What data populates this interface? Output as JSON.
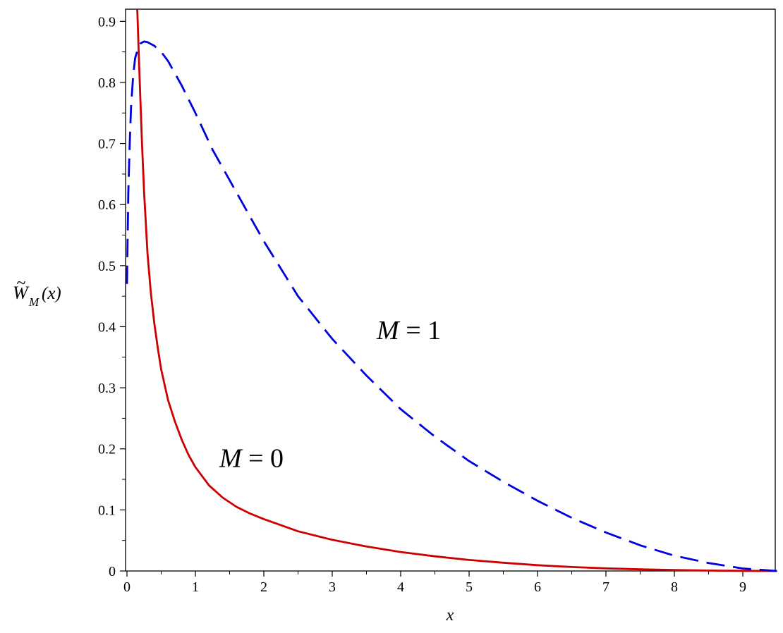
{
  "chart_data": {
    "type": "line",
    "title": "",
    "xlabel": "x",
    "ylabel": {
      "symbol": "W",
      "accent": "~",
      "subscript": "M",
      "argument": "(x)"
    },
    "xlim": [
      0,
      9.5
    ],
    "ylim": [
      0,
      0.92
    ],
    "xticks": [
      0,
      1,
      2,
      3,
      4,
      5,
      6,
      7,
      8,
      9
    ],
    "yticks": [
      0,
      0.1,
      0.2,
      0.3,
      0.4,
      0.5,
      0.6,
      0.7,
      0.8,
      0.9
    ],
    "grid": false,
    "legend": "none",
    "series": [
      {
        "label": "M = 0",
        "color": "#cc0000",
        "style": "solid",
        "x": [
          0.15,
          0.18,
          0.22,
          0.25,
          0.3,
          0.35,
          0.4,
          0.45,
          0.5,
          0.6,
          0.7,
          0.8,
          0.9,
          1.0,
          1.2,
          1.4,
          1.6,
          1.8,
          2.0,
          2.5,
          3.0,
          3.5,
          4.0,
          4.5,
          5.0,
          5.5,
          6.0,
          6.5,
          7.0,
          7.5,
          8.0,
          8.5,
          9.0,
          9.5
        ],
        "y": [
          0.92,
          0.82,
          0.7,
          0.62,
          0.52,
          0.455,
          0.405,
          0.365,
          0.33,
          0.28,
          0.245,
          0.215,
          0.19,
          0.17,
          0.14,
          0.12,
          0.105,
          0.094,
          0.085,
          0.065,
          0.051,
          0.04,
          0.031,
          0.024,
          0.018,
          0.0135,
          0.0095,
          0.0065,
          0.0043,
          0.0027,
          0.0015,
          0.0007,
          0.0002,
          0.0
        ]
      },
      {
        "label": "M = 1",
        "color": "#0000dd",
        "style": "dashed",
        "x": [
          0.0,
          0.02,
          0.04,
          0.06,
          0.09,
          0.12,
          0.16,
          0.2,
          0.25,
          0.3,
          0.4,
          0.5,
          0.6,
          0.8,
          1.0,
          1.25,
          1.5,
          2.0,
          2.5,
          3.0,
          3.5,
          4.0,
          4.5,
          5.0,
          5.5,
          6.0,
          6.5,
          7.0,
          7.5,
          8.0,
          8.5,
          9.0,
          9.5
        ],
        "y": [
          0.47,
          0.62,
          0.7,
          0.76,
          0.81,
          0.84,
          0.855,
          0.864,
          0.867,
          0.866,
          0.86,
          0.85,
          0.835,
          0.795,
          0.75,
          0.69,
          0.64,
          0.54,
          0.45,
          0.38,
          0.32,
          0.265,
          0.22,
          0.18,
          0.146,
          0.115,
          0.087,
          0.063,
          0.042,
          0.025,
          0.013,
          0.004,
          0.0
        ]
      }
    ],
    "annotations": [
      {
        "text": "M = 1",
        "x": 3.65,
        "y": 0.38
      },
      {
        "text": "M = 0",
        "x": 1.35,
        "y": 0.17
      }
    ]
  }
}
